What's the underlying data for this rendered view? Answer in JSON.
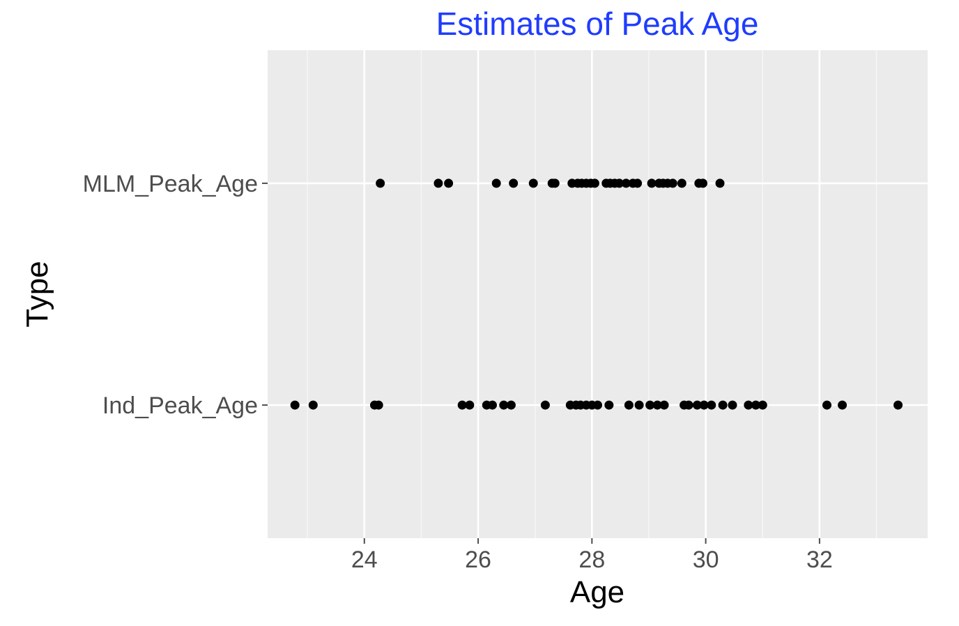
{
  "chart_data": {
    "type": "scatter",
    "title": "Estimates of Peak Age",
    "xlabel": "Age",
    "ylabel": "Type",
    "xlim": [
      22.3,
      33.9
    ],
    "x_ticks": [
      24,
      26,
      28,
      30,
      32
    ],
    "x_minor_ticks": [
      23,
      25,
      27,
      29,
      31,
      33
    ],
    "categories": [
      "Ind_Peak_Age",
      "MLM_Peak_Age"
    ],
    "grid": true,
    "background": "#ebebeb",
    "point_color": "#000000",
    "title_color": "#1f3cff",
    "series": [
      {
        "category": "MLM_Peak_Age",
        "x": [
          24.28,
          25.3,
          25.48,
          26.32,
          26.62,
          26.97,
          27.3,
          27.35,
          27.65,
          27.75,
          27.82,
          27.9,
          27.98,
          28.05,
          28.25,
          28.32,
          28.4,
          28.48,
          28.6,
          28.72,
          28.8,
          29.05,
          29.18,
          29.25,
          29.33,
          29.42,
          29.58,
          29.88,
          29.95,
          30.25
        ]
      },
      {
        "category": "Ind_Peak_Age",
        "x": [
          22.78,
          23.1,
          24.18,
          24.25,
          25.72,
          25.85,
          26.15,
          26.25,
          26.45,
          26.58,
          27.18,
          27.62,
          27.72,
          27.8,
          27.9,
          28.0,
          28.1,
          28.3,
          28.65,
          28.83,
          29.02,
          29.15,
          29.27,
          29.62,
          29.7,
          29.85,
          29.97,
          30.1,
          30.3,
          30.47,
          30.75,
          30.88,
          31.0,
          32.13,
          32.4,
          33.38
        ]
      }
    ]
  }
}
